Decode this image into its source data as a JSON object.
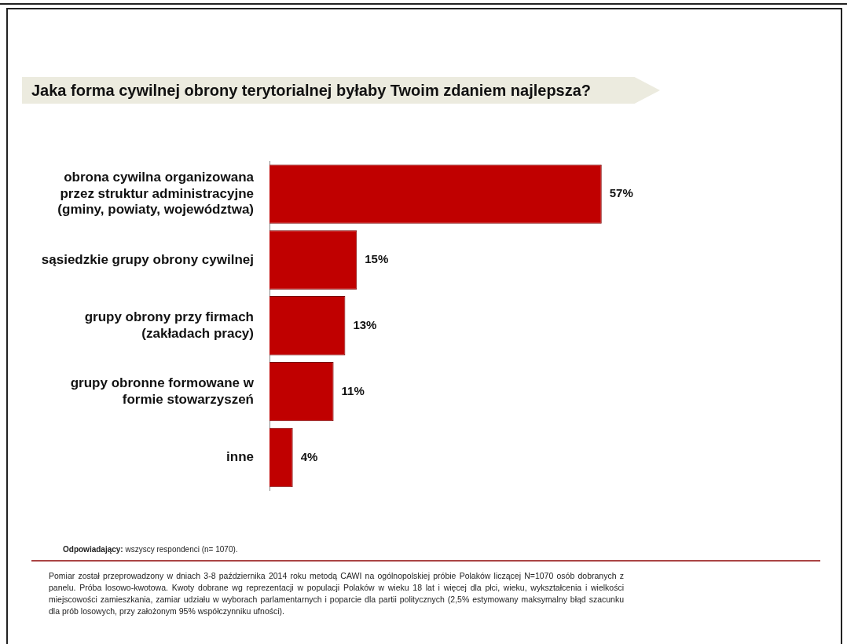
{
  "chart_data": {
    "type": "bar",
    "orientation": "horizontal",
    "title": "Jaka forma cywilnej obrony terytorialnej byłaby Twoim zdaniem najlepsza?",
    "categories": [
      "obrona cywilna organizowana przez struktur administracyjne (gminy, powiaty, województwa)",
      "sąsiedzkie grupy obrony cywilnej",
      "grupy obrony przy firmach (zakładach pracy)",
      "grupy obronne formowane w formie stowarzyszeń",
      "inne"
    ],
    "values": [
      57,
      15,
      13,
      11,
      4
    ],
    "value_labels": [
      "57%",
      "15%",
      "13%",
      "11%",
      "4%"
    ],
    "color": "#c00000",
    "legend": false,
    "annotations": [
      "Odpowiadający: wszyscy respondenci (n= 1070).",
      "Pomiar został przeprowadzony w dniach 3-8 października 2014 roku metodą CAWI na ogólnopolskiej próbie Polaków liczącej N=1070 osób dobranych z panelu. Próba losowo-kwotowa. Kwoty dobrane wg reprezentacji w populacji Polaków w wieku 18 lat i więcej dla płci, wieku, wykształcenia i wielkości miejscowości zamieszkania, zamiar udziału w wyborach parlamentarnych i poparcie dla partii politycznych (2,5% estymowany maksymalny błąd szacunku dla prób losowych, przy założonym 95% współczynniku ufności)."
    ]
  }
}
